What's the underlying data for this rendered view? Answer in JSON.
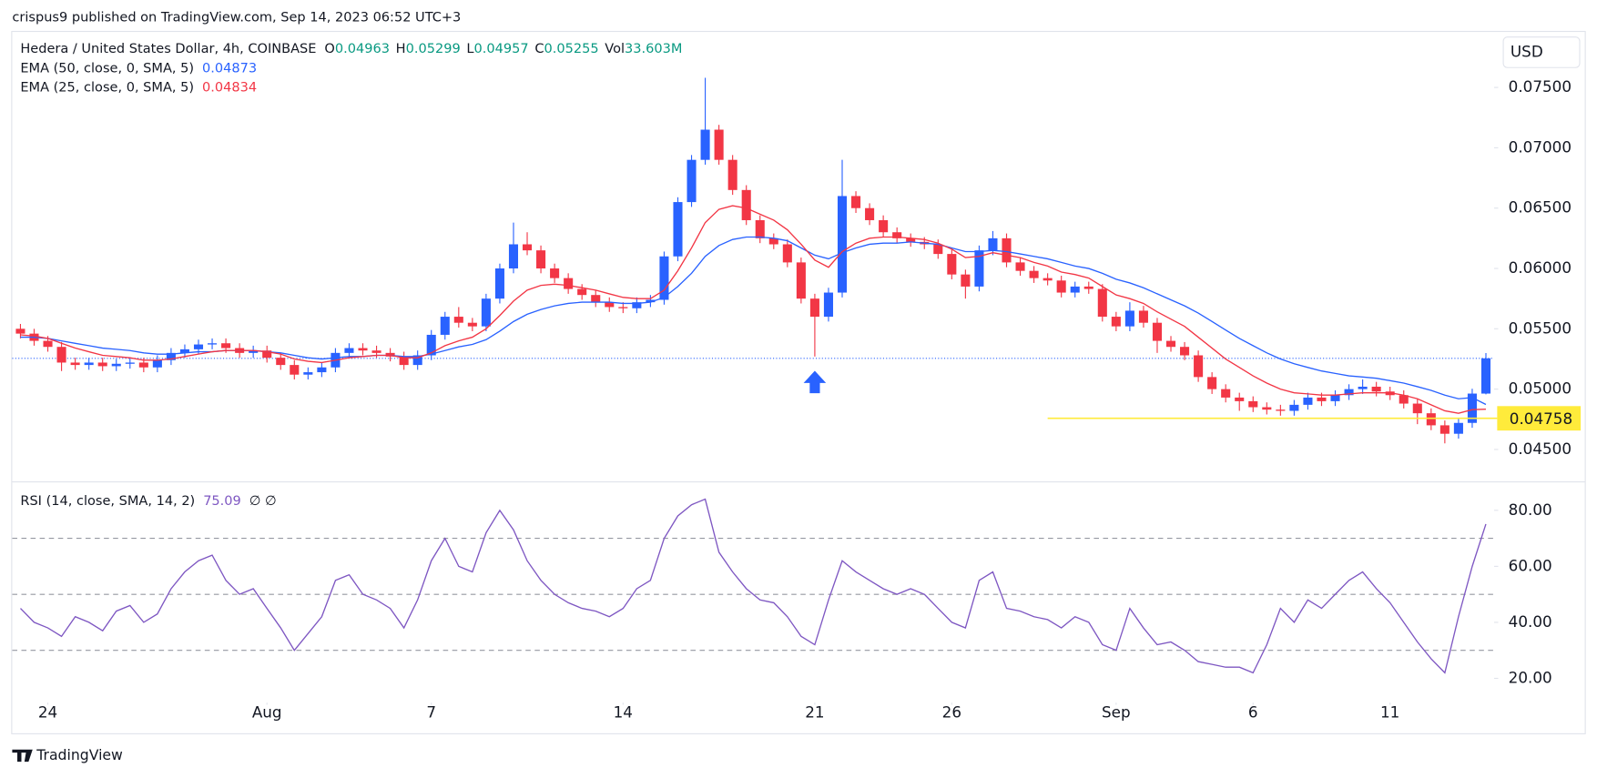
{
  "header": {
    "publisher": "crispus9 published on TradingView.com, Sep 14, 2023 06:52 UTC+3",
    "brand": "TradingView"
  },
  "chart_data": [
    {
      "type": "candlestick",
      "title": "Hedera / United States Dollar, 4h, COINBASE",
      "ohlc_labels": [
        "O",
        "H",
        "L",
        "C"
      ],
      "volume_label": "Vol",
      "volume": "33.603M",
      "currency": "USD",
      "up_color": "#2962ff",
      "down_color": "#f23645",
      "x": [
        -1,
        -0.5,
        0,
        0.5,
        1,
        1.5,
        2,
        2.5,
        3,
        3.5,
        4,
        4.5,
        5,
        5.5,
        6,
        6.5,
        7,
        7.5,
        8,
        8.5,
        9,
        9.5,
        10,
        10.5,
        11,
        11.5,
        12,
        12.5,
        13,
        13.5,
        14,
        14.5,
        15,
        15.5,
        16,
        16.5,
        17,
        17.5,
        18,
        18.5,
        19,
        19.5,
        20,
        20.5,
        21,
        21.5,
        22,
        22.5,
        23,
        23.5,
        24,
        24.5,
        25,
        25.5,
        26,
        26.5,
        27,
        27.5,
        28,
        28.5,
        29,
        29.5,
        30,
        30.5,
        31,
        31.5,
        32,
        32.5,
        33,
        33.5,
        34,
        34.5,
        35,
        35.5,
        36,
        36.5,
        37,
        37.5,
        38,
        38.5,
        39,
        39.5,
        40,
        40.5,
        41,
        41.5,
        42,
        42.5,
        43,
        43.5,
        44,
        44.5,
        45,
        45.5,
        46,
        46.5,
        47,
        47.5,
        48,
        48.5,
        49,
        49.5,
        50,
        50.5,
        51,
        51.5,
        52,
        52.5
      ],
      "open": [
        0.055,
        0.0546,
        0.054,
        0.0535,
        0.0522,
        0.052,
        0.0522,
        0.0519,
        0.0521,
        0.0522,
        0.0518,
        0.0524,
        0.053,
        0.0533,
        0.0537,
        0.0538,
        0.0534,
        0.053,
        0.0532,
        0.0526,
        0.052,
        0.0512,
        0.0514,
        0.0518,
        0.053,
        0.0534,
        0.0532,
        0.053,
        0.0527,
        0.052,
        0.0528,
        0.0545,
        0.056,
        0.0555,
        0.0552,
        0.0575,
        0.06,
        0.062,
        0.0615,
        0.06,
        0.0592,
        0.0583,
        0.0578,
        0.0572,
        0.0568,
        0.0567,
        0.0572,
        0.0574,
        0.061,
        0.0655,
        0.069,
        0.0715,
        0.069,
        0.0665,
        0.064,
        0.0625,
        0.062,
        0.0605,
        0.0575,
        0.056,
        0.058,
        0.066,
        0.065,
        0.064,
        0.063,
        0.0625,
        0.0622,
        0.062,
        0.0612,
        0.0595,
        0.0585,
        0.0615,
        0.0625,
        0.0605,
        0.0598,
        0.0592,
        0.059,
        0.058,
        0.0585,
        0.0583,
        0.056,
        0.0552,
        0.0565,
        0.0555,
        0.054,
        0.0535,
        0.0528,
        0.051,
        0.05,
        0.0493,
        0.049,
        0.0485,
        0.0483,
        0.0482,
        0.0487,
        0.0493,
        0.049,
        0.0495,
        0.05,
        0.0502,
        0.0498,
        0.0495,
        0.0488,
        0.048,
        0.047,
        0.0463,
        0.0472,
        0.04963
      ],
      "high": [
        0.0554,
        0.055,
        0.0544,
        0.0539,
        0.0526,
        0.0526,
        0.0526,
        0.0525,
        0.0526,
        0.0526,
        0.0528,
        0.0534,
        0.0537,
        0.0541,
        0.0542,
        0.0542,
        0.0538,
        0.0536,
        0.0536,
        0.053,
        0.0524,
        0.0518,
        0.0522,
        0.0534,
        0.0538,
        0.0538,
        0.0536,
        0.0534,
        0.0531,
        0.0532,
        0.0549,
        0.0564,
        0.0568,
        0.0559,
        0.0579,
        0.0604,
        0.0638,
        0.063,
        0.0619,
        0.0604,
        0.0596,
        0.0587,
        0.0582,
        0.0576,
        0.0572,
        0.0576,
        0.0578,
        0.0614,
        0.0659,
        0.0694,
        0.0758,
        0.0719,
        0.0694,
        0.0669,
        0.0644,
        0.0629,
        0.0624,
        0.0609,
        0.0579,
        0.0584,
        0.069,
        0.0664,
        0.0654,
        0.0644,
        0.0634,
        0.0629,
        0.0626,
        0.0624,
        0.0616,
        0.0599,
        0.0619,
        0.0631,
        0.0629,
        0.0609,
        0.0602,
        0.0596,
        0.0594,
        0.0589,
        0.0589,
        0.0587,
        0.0564,
        0.0572,
        0.0569,
        0.0559,
        0.0544,
        0.0539,
        0.0532,
        0.0514,
        0.0504,
        0.0497,
        0.0494,
        0.0489,
        0.0487,
        0.0491,
        0.0497,
        0.0497,
        0.0499,
        0.0504,
        0.0508,
        0.0506,
        0.0502,
        0.0499,
        0.0492,
        0.0484,
        0.0474,
        0.0476,
        0.05003,
        0.05299
      ],
      "low": [
        0.0542,
        0.0536,
        0.0531,
        0.0515,
        0.0516,
        0.0516,
        0.0515,
        0.0515,
        0.0517,
        0.0514,
        0.0514,
        0.052,
        0.0526,
        0.0529,
        0.0533,
        0.053,
        0.0526,
        0.0526,
        0.0522,
        0.0516,
        0.0508,
        0.0508,
        0.051,
        0.0514,
        0.0526,
        0.0528,
        0.0526,
        0.0523,
        0.0516,
        0.0516,
        0.0524,
        0.0541,
        0.0551,
        0.0548,
        0.0548,
        0.0571,
        0.0596,
        0.0611,
        0.0596,
        0.0588,
        0.0579,
        0.0574,
        0.0568,
        0.0564,
        0.0563,
        0.0563,
        0.0568,
        0.057,
        0.0606,
        0.0651,
        0.0686,
        0.0686,
        0.0661,
        0.0636,
        0.0621,
        0.0616,
        0.0601,
        0.0571,
        0.0527,
        0.0556,
        0.0576,
        0.0646,
        0.0636,
        0.0626,
        0.0621,
        0.0618,
        0.0616,
        0.0608,
        0.0591,
        0.0575,
        0.0581,
        0.0611,
        0.0601,
        0.0594,
        0.0588,
        0.0586,
        0.0576,
        0.0576,
        0.0579,
        0.0556,
        0.0548,
        0.0548,
        0.0551,
        0.053,
        0.0531,
        0.0524,
        0.0506,
        0.0496,
        0.0489,
        0.0482,
        0.0481,
        0.0479,
        0.0478,
        0.0478,
        0.0483,
        0.0486,
        0.0486,
        0.0491,
        0.0496,
        0.0494,
        0.0491,
        0.0484,
        0.0471,
        0.0466,
        0.0455,
        0.0459,
        0.0468,
        0.04957
      ],
      "close": [
        0.0546,
        0.054,
        0.0535,
        0.0522,
        0.052,
        0.0522,
        0.0519,
        0.0521,
        0.0522,
        0.0518,
        0.0524,
        0.053,
        0.0533,
        0.0537,
        0.0538,
        0.0534,
        0.053,
        0.0532,
        0.0526,
        0.052,
        0.0512,
        0.0514,
        0.0518,
        0.053,
        0.0534,
        0.0532,
        0.053,
        0.0527,
        0.052,
        0.0528,
        0.0545,
        0.056,
        0.0555,
        0.0552,
        0.0575,
        0.06,
        0.062,
        0.0615,
        0.06,
        0.0592,
        0.0583,
        0.0578,
        0.0572,
        0.0568,
        0.0567,
        0.0572,
        0.0574,
        0.061,
        0.0655,
        0.069,
        0.0715,
        0.069,
        0.0665,
        0.064,
        0.0625,
        0.062,
        0.0605,
        0.0575,
        0.056,
        0.058,
        0.066,
        0.065,
        0.064,
        0.063,
        0.0625,
        0.0622,
        0.062,
        0.0612,
        0.0595,
        0.0585,
        0.0615,
        0.0625,
        0.0605,
        0.0598,
        0.0592,
        0.059,
        0.058,
        0.0585,
        0.0583,
        0.056,
        0.0552,
        0.0565,
        0.0555,
        0.054,
        0.0535,
        0.0528,
        0.051,
        0.05,
        0.0493,
        0.049,
        0.0485,
        0.0483,
        0.0482,
        0.0487,
        0.0493,
        0.049,
        0.0495,
        0.05,
        0.0502,
        0.0498,
        0.0495,
        0.0488,
        0.048,
        0.047,
        0.0463,
        0.0472,
        0.04963,
        0.05255
      ],
      "series": [
        {
          "name": "EMA (50, close, 0, SMA, 5)",
          "color": "#2962ff",
          "values": [
            0.0543,
            0.0543,
            0.0542,
            0.054,
            0.0538,
            0.0536,
            0.0534,
            0.0533,
            0.0532,
            0.053,
            0.0529,
            0.0529,
            0.053,
            0.0531,
            0.0531,
            0.0532,
            0.0532,
            0.0532,
            0.0531,
            0.053,
            0.0528,
            0.0526,
            0.0525,
            0.0526,
            0.0527,
            0.0527,
            0.0528,
            0.0528,
            0.0527,
            0.0527,
            0.0529,
            0.0532,
            0.0535,
            0.0537,
            0.0541,
            0.0548,
            0.0556,
            0.0562,
            0.0566,
            0.0569,
            0.0571,
            0.0572,
            0.0572,
            0.0572,
            0.0571,
            0.0571,
            0.0572,
            0.0576,
            0.0585,
            0.0596,
            0.061,
            0.0619,
            0.0624,
            0.0626,
            0.0626,
            0.0625,
            0.0623,
            0.0617,
            0.0611,
            0.0608,
            0.0613,
            0.0617,
            0.062,
            0.0621,
            0.0621,
            0.0622,
            0.0621,
            0.062,
            0.0617,
            0.0614,
            0.0614,
            0.0615,
            0.0614,
            0.0612,
            0.061,
            0.0608,
            0.0605,
            0.0602,
            0.06,
            0.0596,
            0.0591,
            0.0588,
            0.0584,
            0.0579,
            0.0574,
            0.0569,
            0.0563,
            0.0556,
            0.0549,
            0.0542,
            0.0536,
            0.053,
            0.0525,
            0.0521,
            0.0518,
            0.0515,
            0.0513,
            0.0511,
            0.051,
            0.0509,
            0.0507,
            0.0505,
            0.0502,
            0.0499,
            0.0495,
            0.0492,
            0.0493,
            0.04873
          ]
        },
        {
          "name": "EMA (25, close, 0, SMA, 5)",
          "color": "#f23645",
          "values": [
            0.0545,
            0.0544,
            0.0542,
            0.0538,
            0.0534,
            0.0531,
            0.0528,
            0.0527,
            0.0526,
            0.0524,
            0.0524,
            0.0525,
            0.0527,
            0.0529,
            0.0531,
            0.0532,
            0.0532,
            0.0532,
            0.0531,
            0.0529,
            0.0525,
            0.0523,
            0.0522,
            0.0524,
            0.0526,
            0.0527,
            0.0528,
            0.0528,
            0.0526,
            0.0526,
            0.053,
            0.0536,
            0.054,
            0.0543,
            0.055,
            0.0561,
            0.0573,
            0.0582,
            0.0586,
            0.0587,
            0.0586,
            0.0584,
            0.0582,
            0.0579,
            0.0576,
            0.0575,
            0.0575,
            0.0582,
            0.0598,
            0.0617,
            0.0638,
            0.0649,
            0.0652,
            0.065,
            0.0645,
            0.064,
            0.0632,
            0.062,
            0.0607,
            0.0601,
            0.0614,
            0.0621,
            0.0625,
            0.0626,
            0.0626,
            0.0625,
            0.0624,
            0.0621,
            0.0616,
            0.0609,
            0.061,
            0.0613,
            0.0611,
            0.0609,
            0.0605,
            0.0602,
            0.0597,
            0.0595,
            0.0592,
            0.0585,
            0.0578,
            0.0575,
            0.0571,
            0.0564,
            0.0558,
            0.0552,
            0.0543,
            0.0534,
            0.0525,
            0.0518,
            0.0511,
            0.0505,
            0.05,
            0.0497,
            0.0496,
            0.0495,
            0.0495,
            0.0496,
            0.0497,
            0.0497,
            0.0497,
            0.0495,
            0.0492,
            0.0487,
            0.0482,
            0.048,
            0.0483,
            0.04834
          ]
        }
      ],
      "xlim": [
        -1.3,
        52.8
      ],
      "xticks": [
        {
          "value": 0,
          "label": "24"
        },
        {
          "value": 8,
          "label": "Aug"
        },
        {
          "value": 14,
          "label": "7"
        },
        {
          "value": 21,
          "label": "14"
        },
        {
          "value": 28,
          "label": "21"
        },
        {
          "value": 33,
          "label": "26"
        },
        {
          "value": 39,
          "label": "Sep"
        },
        {
          "value": 44,
          "label": "6"
        },
        {
          "value": 49,
          "label": "11"
        }
      ],
      "ylim": [
        0.0424,
        0.0796
      ],
      "yticks": [
        {
          "value": 0.045,
          "label": "0.04500"
        },
        {
          "value": 0.05,
          "label": "0.05000"
        },
        {
          "value": 0.055,
          "label": "0.05500"
        },
        {
          "value": 0.06,
          "label": "0.06000"
        },
        {
          "value": 0.065,
          "label": "0.06500"
        },
        {
          "value": 0.07,
          "label": "0.07000"
        },
        {
          "value": 0.075,
          "label": "0.07500"
        }
      ],
      "support_level": 0.04758,
      "support_start": 36.5,
      "support_color": "#ffeb3b"
    },
    {
      "type": "line",
      "title": "RSI (14, close, SMA, 14, 2)",
      "extra": "∅ ∅",
      "series": [
        {
          "name": "RSI",
          "color": "#7e57c2",
          "values": [
            45,
            40,
            38,
            35,
            42,
            40,
            37,
            44,
            46,
            40,
            43,
            52,
            58,
            62,
            64,
            55,
            50,
            52,
            45,
            38,
            30,
            36,
            42,
            55,
            57,
            50,
            48,
            45,
            38,
            48,
            62,
            70,
            60,
            58,
            72,
            80,
            73,
            62,
            55,
            50,
            47,
            45,
            44,
            42,
            45,
            52,
            55,
            70,
            78,
            82,
            84,
            65,
            58,
            52,
            48,
            47,
            42,
            35,
            32,
            48,
            62,
            58,
            55,
            52,
            50,
            52,
            50,
            45,
            40,
            38,
            55,
            58,
            45,
            44,
            42,
            41,
            38,
            42,
            40,
            32,
            30,
            45,
            38,
            32,
            33,
            30,
            26,
            25,
            24,
            24,
            22,
            32,
            45,
            40,
            48,
            45,
            50,
            55,
            58,
            52,
            47,
            40,
            33,
            27,
            22,
            42,
            60,
            75.09
          ]
        }
      ],
      "bands": [
        30,
        50,
        70
      ],
      "ylim": [
        11.3,
        89.8
      ],
      "yticks": [
        {
          "value": 20,
          "label": "20.00"
        },
        {
          "value": 40,
          "label": "40.00"
        },
        {
          "value": 60,
          "label": "60.00"
        },
        {
          "value": 80,
          "label": "80.00"
        }
      ]
    }
  ]
}
